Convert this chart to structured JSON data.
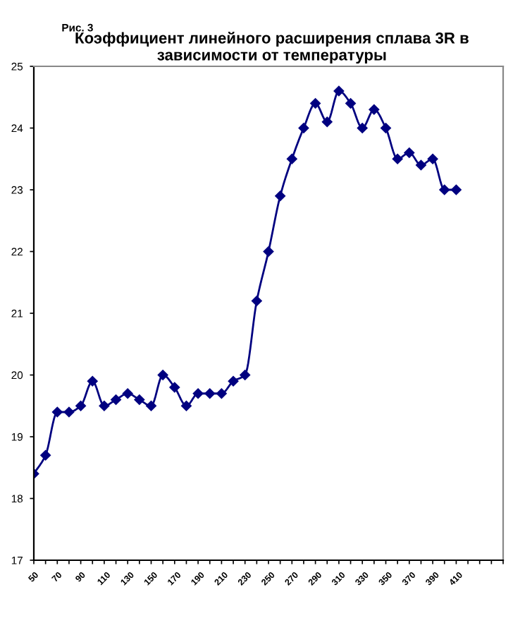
{
  "chart_data": {
    "type": "line",
    "title": "Коэффициент линейного расширения сплава 3R в зависимости от температуры",
    "annotations": [
      "Рис. 3"
    ],
    "categories": [
      "50",
      null,
      "70",
      null,
      "90",
      null,
      "110",
      null,
      "130",
      null,
      "150",
      null,
      "170",
      null,
      "190",
      null,
      "210",
      null,
      "230",
      null,
      "250",
      null,
      "270",
      null,
      "290",
      null,
      "310",
      null,
      "330",
      null,
      "350",
      null,
      "370",
      null,
      "390",
      null,
      "410",
      null,
      null,
      null,
      null
    ],
    "series": [
      {
        "color": "#000080",
        "values": [
          18.4,
          18.7,
          19.4,
          19.4,
          19.5,
          19.9,
          19.5,
          19.6,
          19.7,
          19.6,
          19.5,
          20.0,
          19.8,
          19.5,
          19.7,
          19.7,
          19.7,
          19.9,
          20.0,
          21.2,
          22.0,
          22.9,
          23.5,
          24.0,
          24.4,
          24.1,
          24.6,
          24.4,
          24.0,
          24.3,
          24.0,
          23.5,
          23.6,
          23.4,
          23.5,
          23.0,
          23.0,
          null,
          null,
          null,
          null
        ]
      }
    ],
    "ylim": [
      17,
      25
    ],
    "yticks": [
      17,
      18,
      19,
      20,
      21,
      22,
      23,
      24,
      25
    ],
    "marker": "diamond",
    "line_style": "solid",
    "grid": false,
    "legend": false
  }
}
